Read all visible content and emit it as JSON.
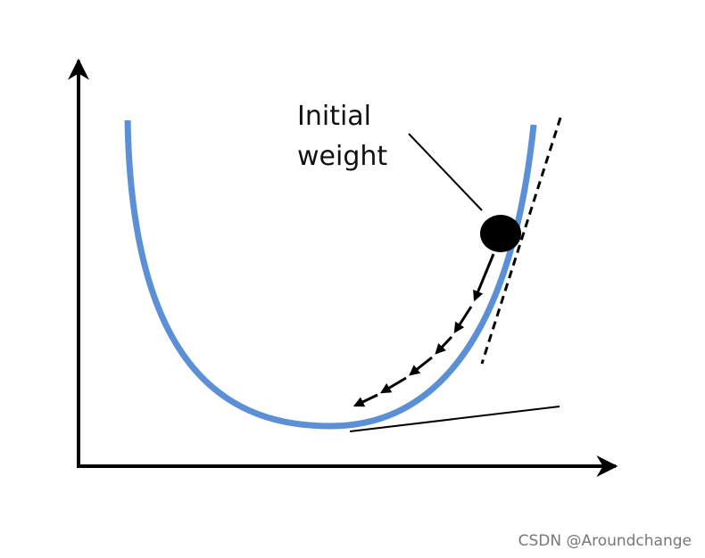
{
  "annotation": {
    "lines": [
      "Initial",
      "weight"
    ]
  },
  "watermark": "CSDN @Aroundchange"
}
